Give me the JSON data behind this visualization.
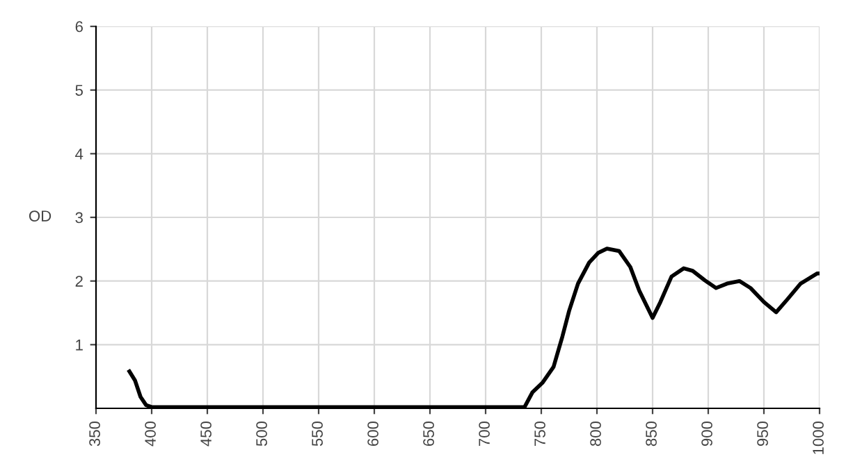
{
  "chart_data": {
    "type": "line",
    "ylabel": "OD",
    "xlim": [
      350,
      1000
    ],
    "ylim": [
      0,
      6
    ],
    "xticks": [
      350,
      400,
      450,
      500,
      550,
      600,
      650,
      700,
      750,
      800,
      850,
      900,
      950,
      1000
    ],
    "yticks": [
      1,
      2,
      3,
      4,
      5,
      6
    ],
    "grid": true,
    "marker": "none",
    "line_style": "solid",
    "series": [
      {
        "color": "#000000",
        "x": [
          380,
          385,
          390,
          395,
          400,
          450,
          500,
          550,
          600,
          650,
          700,
          730,
          735,
          742,
          751,
          761,
          769,
          775,
          783,
          793,
          801,
          809,
          820,
          830,
          838,
          850,
          857,
          867,
          878,
          886,
          897,
          907,
          917,
          928,
          938,
          950,
          961,
          971,
          983,
          998,
          1000
        ],
        "values": [
          0.58,
          0.44,
          0.18,
          0.05,
          0.02,
          0.02,
          0.02,
          0.02,
          0.02,
          0.02,
          0.02,
          0.02,
          0.02,
          0.25,
          0.4,
          0.65,
          1.13,
          1.53,
          1.96,
          2.29,
          2.44,
          2.51,
          2.47,
          2.22,
          1.85,
          1.42,
          1.67,
          2.07,
          2.2,
          2.16,
          2.01,
          1.89,
          1.96,
          2.0,
          1.89,
          1.67,
          1.51,
          1.71,
          1.96,
          2.12,
          2.12
        ]
      }
    ]
  }
}
